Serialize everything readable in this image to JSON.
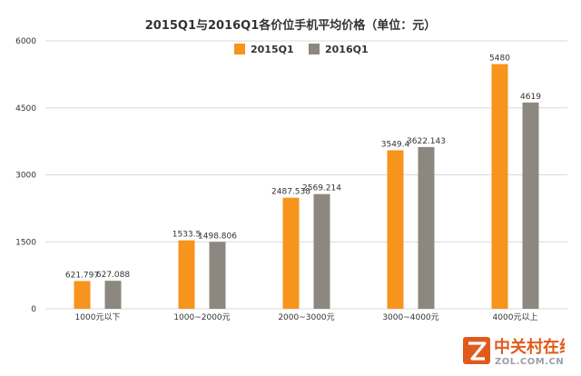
{
  "chart_data": {
    "type": "bar",
    "title": "2015Q1与2016Q1各价位手机平均价格（单位：元）",
    "categories": [
      "1000元以下",
      "1000~2000元",
      "2000~3000元",
      "3000~4000元",
      "4000元以上"
    ],
    "series": [
      {
        "name": "2015Q1",
        "color": "#f7941d",
        "values": [
          621.797,
          1533.5,
          2487.538,
          3549.4,
          5480
        ],
        "labels": [
          "621.797",
          "1533.5",
          "2487.538",
          "3549.4",
          "5480"
        ]
      },
      {
        "name": "2016Q1",
        "color": "#8c8880",
        "values": [
          627.088,
          1498.806,
          2569.214,
          3622.143,
          4619
        ],
        "labels": [
          "627.088",
          "1498.806",
          "2569.214",
          "3622.143",
          "4619"
        ]
      }
    ],
    "ylim": [
      0,
      6000
    ],
    "yticks": [
      0,
      1500,
      3000,
      4500,
      6000
    ],
    "grid": true,
    "legend_position": "top-center",
    "xlabel": "",
    "ylabel": ""
  },
  "watermark": {
    "cn_text": "中关村在线",
    "en_text": "ZOL.COM.CN"
  }
}
